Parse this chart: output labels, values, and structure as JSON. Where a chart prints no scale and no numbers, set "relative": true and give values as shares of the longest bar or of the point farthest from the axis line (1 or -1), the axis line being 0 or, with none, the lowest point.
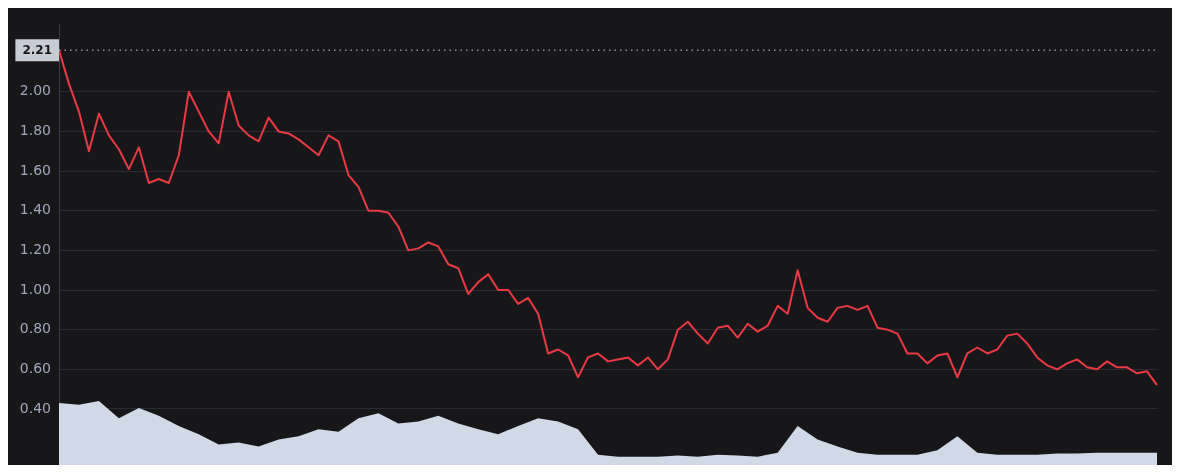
{
  "chart_data": [
    {
      "type": "line",
      "categories": [
        null,
        null,
        null,
        null,
        null,
        null,
        null,
        null,
        null,
        null,
        null,
        null,
        null,
        null,
        null,
        null,
        null,
        null,
        null,
        null,
        null,
        null,
        null,
        null,
        null,
        null,
        null,
        null,
        null,
        null,
        null,
        null,
        null,
        null,
        null,
        null,
        null,
        null,
        null,
        null,
        null,
        null,
        null,
        null,
        null,
        null,
        null,
        null,
        null,
        null,
        null,
        null,
        null,
        null,
        null,
        null,
        null,
        null,
        null,
        null,
        null,
        null,
        null,
        null,
        null,
        null,
        null,
        null,
        null,
        null,
        null,
        null,
        null,
        null,
        null,
        null,
        null,
        null,
        null,
        null,
        null,
        null,
        null,
        null,
        null,
        null,
        null,
        null,
        null,
        null,
        null,
        null,
        null,
        null,
        null,
        null,
        null,
        null,
        null,
        null,
        null,
        null,
        null,
        null,
        null,
        null,
        null,
        null,
        null,
        null,
        null
      ],
      "series": [
        {
          "color": "#ea3943",
          "values": [
            2.21,
            2.04,
            1.9,
            1.7,
            1.89,
            1.78,
            1.71,
            1.61,
            1.72,
            1.54,
            1.56,
            1.54,
            1.68,
            2.0,
            1.9,
            1.8,
            1.74,
            2.0,
            1.83,
            1.78,
            1.75,
            1.87,
            1.8,
            1.79,
            1.76,
            1.72,
            1.68,
            1.78,
            1.75,
            1.58,
            1.52,
            1.4,
            1.4,
            1.39,
            1.32,
            1.2,
            1.21,
            1.24,
            1.22,
            1.13,
            1.11,
            0.98,
            1.04,
            1.08,
            1.0,
            1.0,
            0.93,
            0.96,
            0.88,
            0.68,
            0.7,
            0.67,
            0.56,
            0.66,
            0.68,
            0.64,
            0.65,
            0.66,
            0.62,
            0.66,
            0.6,
            0.65,
            0.8,
            0.84,
            0.78,
            0.73,
            0.81,
            0.82,
            0.76,
            0.83,
            0.79,
            0.82,
            0.92,
            0.88,
            1.1,
            0.91,
            0.86,
            0.84,
            0.91,
            0.92,
            0.9,
            0.92,
            0.81,
            0.8,
            0.78,
            0.68,
            0.68,
            0.63,
            0.67,
            0.68,
            0.56,
            0.68,
            0.71,
            0.68,
            0.7,
            0.77,
            0.78,
            0.73,
            0.66,
            0.62,
            0.6,
            0.63,
            0.65,
            0.61,
            0.6,
            0.64,
            0.61,
            0.61,
            0.58,
            0.59,
            0.52
          ]
        }
      ],
      "ylim": [
        0.2,
        2.34
      ],
      "yticks": [
        {
          "value": 0.4,
          "label": "0.40"
        },
        {
          "value": 0.6,
          "label": "0.60"
        },
        {
          "value": 0.8,
          "label": "0.80"
        },
        {
          "value": 1,
          "label": "1.00"
        },
        {
          "value": 1.2,
          "label": "1.20"
        },
        {
          "value": 1.4,
          "label": "1.40"
        },
        {
          "value": 1.6,
          "label": "1.60"
        },
        {
          "value": 1.8,
          "label": "1.80"
        },
        {
          "value": 2,
          "label": "2.00"
        }
      ],
      "grid": "y",
      "tick_labels": "y",
      "marker": "none",
      "line_style": "solid",
      "ref_lines": [
        {
          "axis": "y",
          "value": 2.21,
          "label": "2.21",
          "line_style": "dotted",
          "color": "#c8ccd4"
        }
      ]
    },
    {
      "type": "area",
      "relative": true,
      "categories": [
        null,
        null,
        null,
        null,
        null,
        null,
        null,
        null,
        null,
        null,
        null,
        null,
        null,
        null,
        null,
        null,
        null,
        null,
        null,
        null,
        null,
        null,
        null,
        null,
        null,
        null,
        null,
        null,
        null,
        null,
        null,
        null,
        null,
        null,
        null,
        null,
        null,
        null,
        null,
        null,
        null,
        null,
        null,
        null,
        null,
        null,
        null,
        null,
        null,
        null,
        null,
        null,
        null,
        null,
        null,
        null
      ],
      "series": [
        {
          "color": "#d1d9e6",
          "values": [
            0.97,
            0.94,
            1,
            0.73,
            0.89,
            0.77,
            0.61,
            0.48,
            0.32,
            0.35,
            0.29,
            0.4,
            0.45,
            0.56,
            0.52,
            0.73,
            0.81,
            0.65,
            0.68,
            0.77,
            0.65,
            0.56,
            0.48,
            0.61,
            0.73,
            0.68,
            0.56,
            0.16,
            0.13,
            0.13,
            0.13,
            0.15,
            0.13,
            0.16,
            0.15,
            0.13,
            0.19,
            0.61,
            0.4,
            0.29,
            0.19,
            0.16,
            0.16,
            0.16,
            0.23,
            0.45,
            0.19,
            0.16,
            0.16,
            0.16,
            0.18,
            0.18,
            0.19,
            0.19,
            0.19,
            0.19
          ]
        }
      ]
    }
  ]
}
